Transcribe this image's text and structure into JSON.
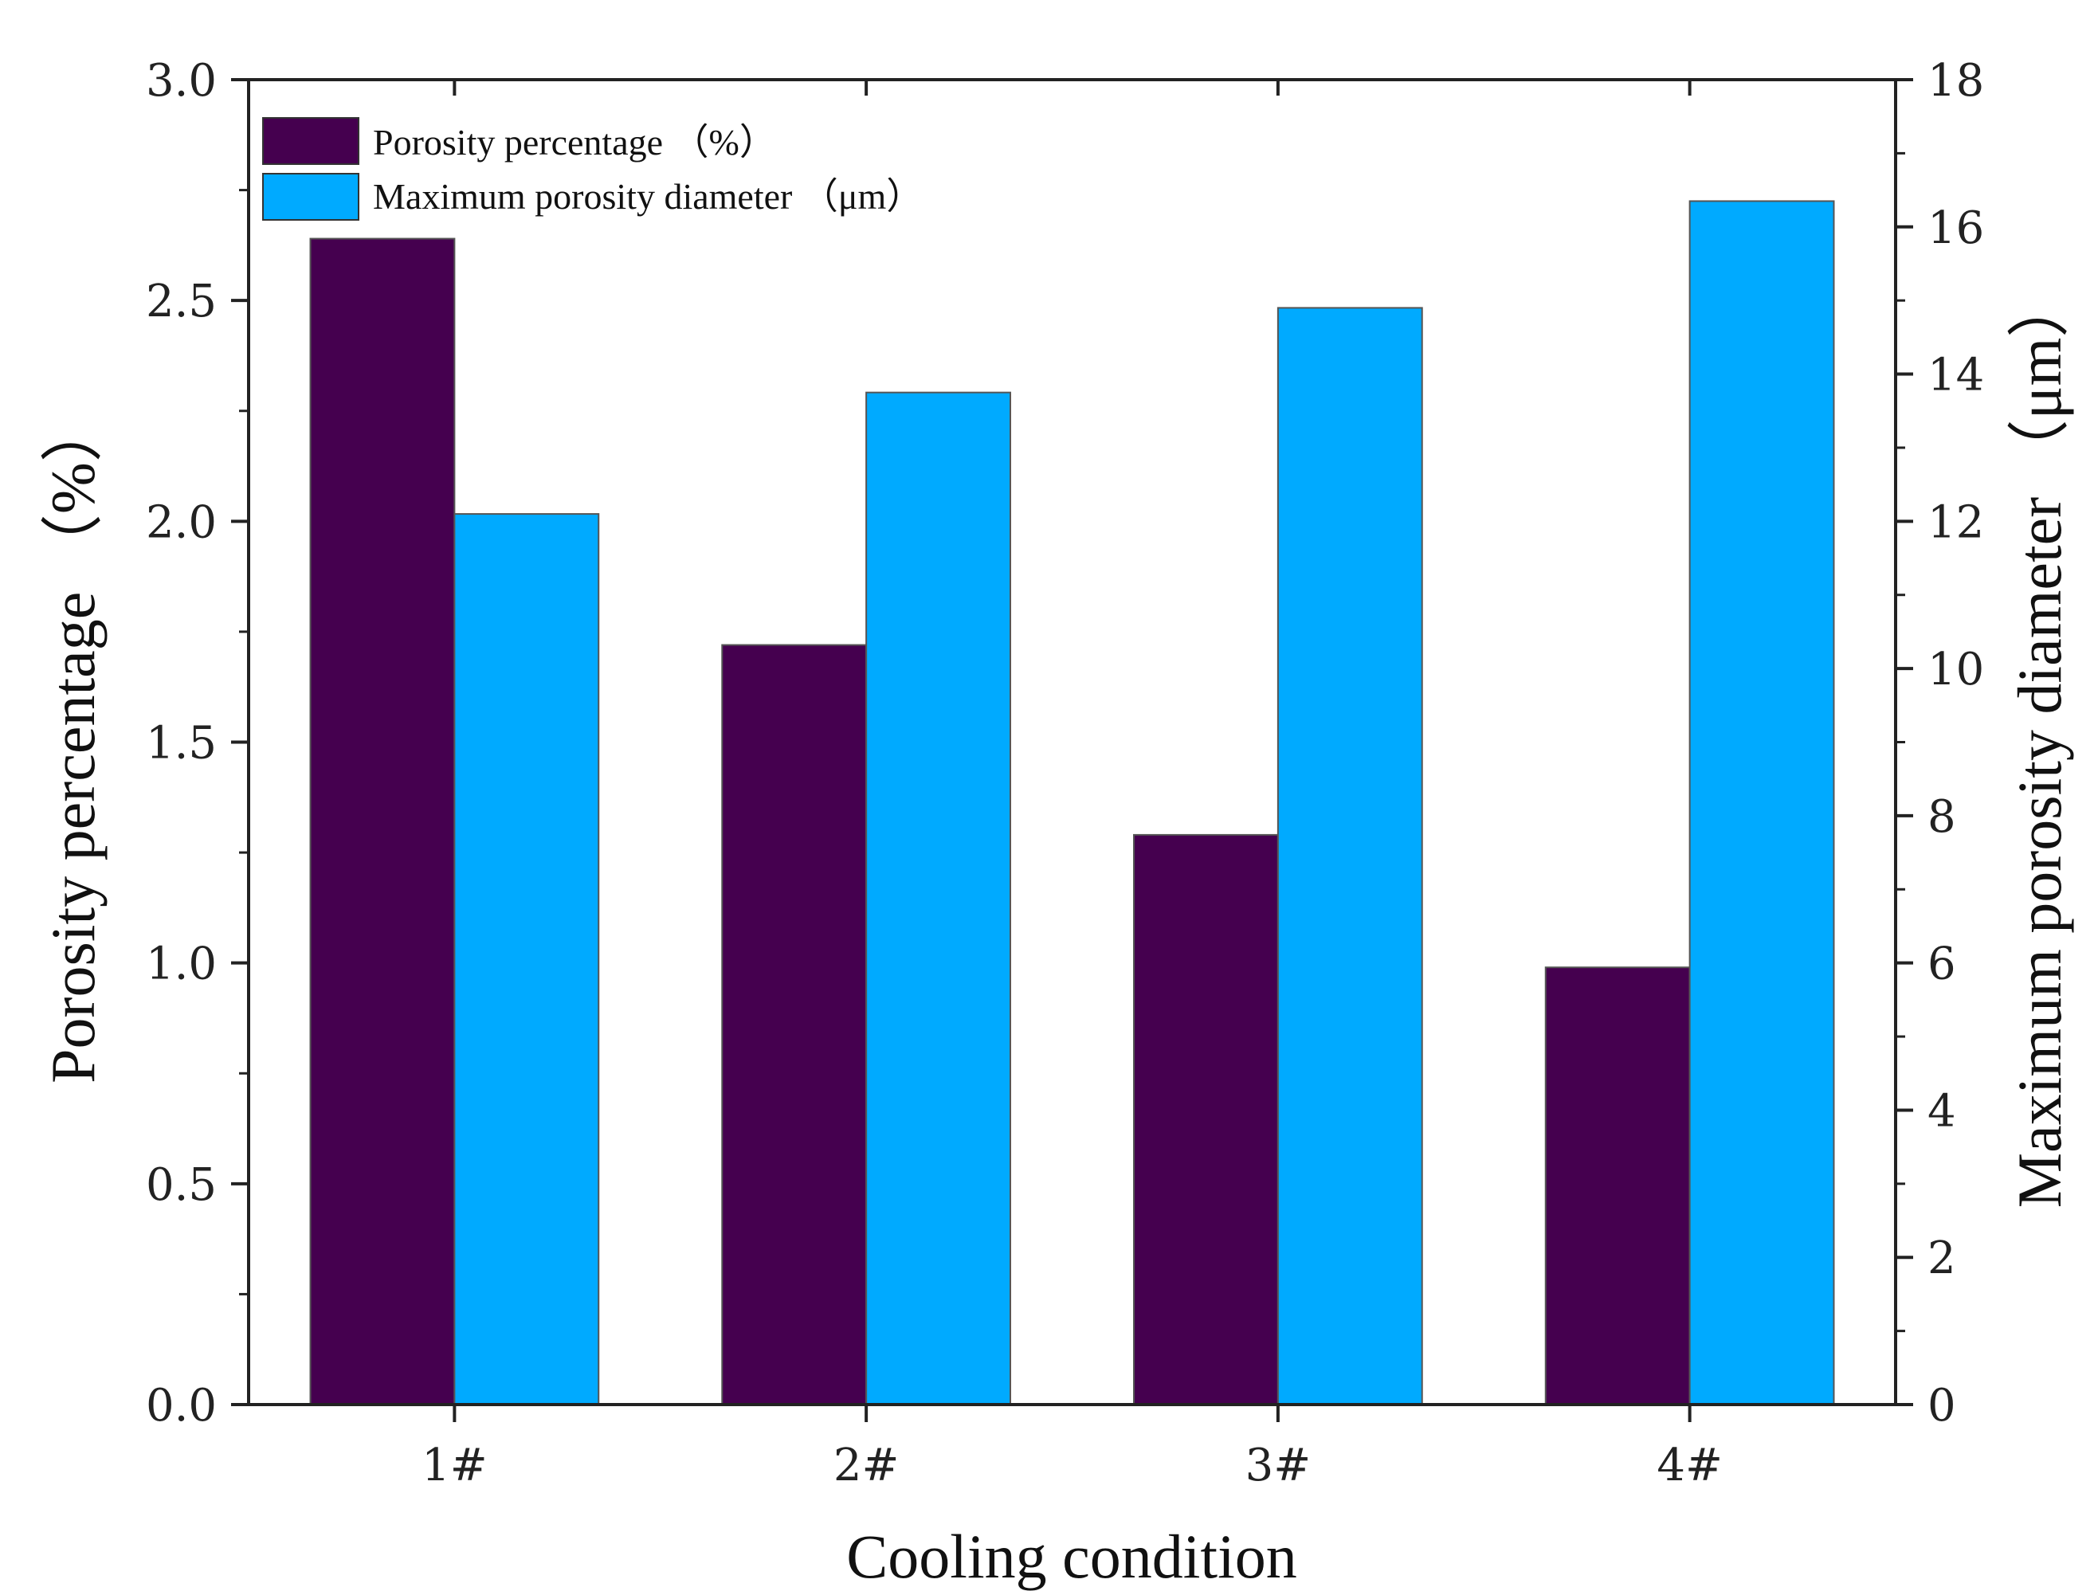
{
  "chart_data": {
    "type": "bar",
    "title": "",
    "categories": [
      "1#",
      "2#",
      "3#",
      "4#"
    ],
    "xlabel": "Cooling condition",
    "series": [
      {
        "name": "Porosity percentage （%）",
        "axis": "left",
        "color": "#45004f",
        "values": [
          2.64,
          1.72,
          1.29,
          0.99
        ]
      },
      {
        "name": "Maximum porosity diameter （μm）",
        "axis": "right",
        "color": "#00aaff",
        "values": [
          12.1,
          13.75,
          14.9,
          16.35
        ]
      }
    ],
    "y_left": {
      "label": "Porosity percentage （%）",
      "ylim": [
        0,
        3
      ],
      "ticks": [
        "0.0",
        "0.5",
        "1.0",
        "1.5",
        "2.0",
        "2.5",
        "3.0"
      ]
    },
    "y_right": {
      "label": "Maximum porosity diameter （μm）",
      "ylim": [
        0,
        18
      ],
      "ticks": [
        "0",
        "2",
        "4",
        "6",
        "8",
        "10",
        "12",
        "14",
        "16",
        "18"
      ]
    },
    "legend_position": "top-left",
    "grid": false
  }
}
